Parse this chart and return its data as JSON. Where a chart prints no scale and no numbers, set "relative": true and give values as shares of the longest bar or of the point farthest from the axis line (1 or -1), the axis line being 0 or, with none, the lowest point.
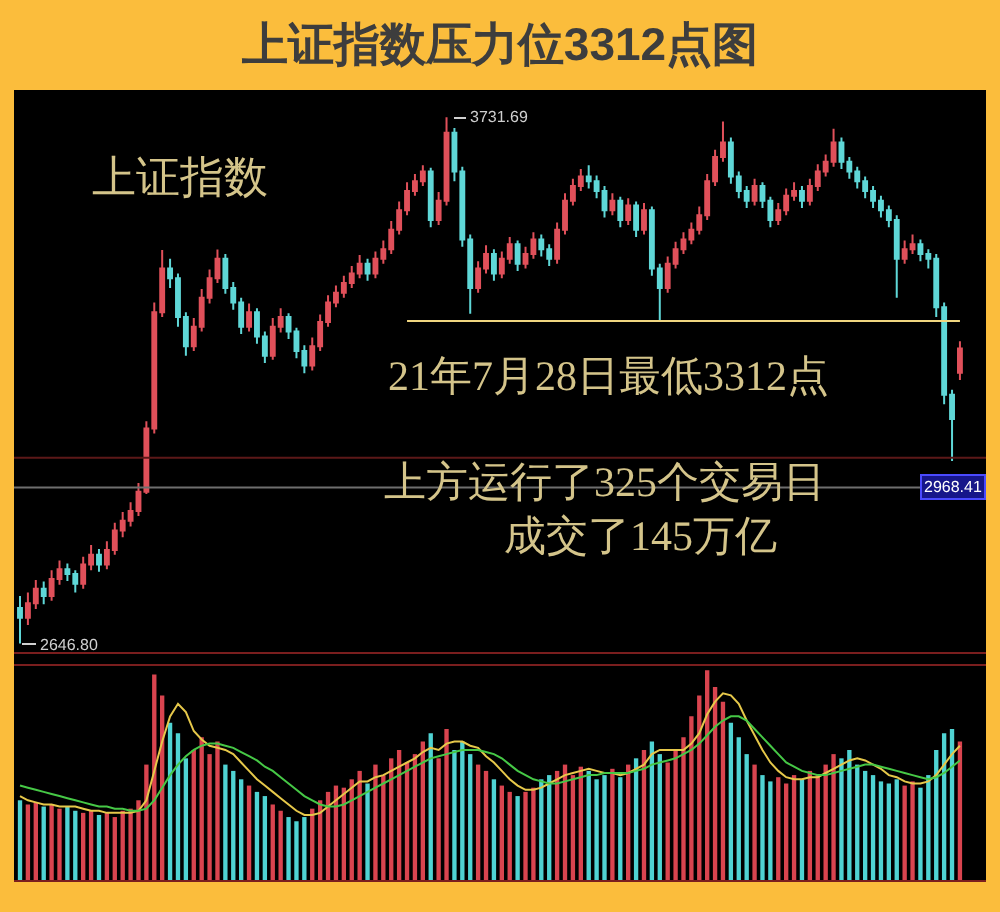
{
  "chart_data": [
    {
      "type": "candlestick",
      "title": "上证指数压力位3312点图",
      "tick_labels": false,
      "categories": [
        null,
        null,
        null,
        null,
        null,
        null,
        null,
        null,
        null,
        null,
        null,
        null,
        null,
        null,
        null,
        null,
        null,
        null,
        null,
        null,
        null,
        null,
        null,
        null,
        null,
        null,
        null,
        null,
        null,
        null,
        null,
        null,
        null,
        null,
        null,
        null,
        null,
        null,
        null,
        null,
        null,
        null,
        null,
        null,
        null,
        null,
        null,
        null,
        null,
        null,
        null,
        null,
        null,
        null,
        null,
        null,
        null,
        null,
        null,
        null,
        null,
        null,
        null,
        null,
        null,
        null,
        null,
        null,
        null,
        null,
        null,
        null,
        null,
        null,
        null,
        null,
        null,
        null,
        null,
        null,
        null,
        null,
        null,
        null,
        null,
        null,
        null,
        null,
        null,
        null,
        null,
        null,
        null,
        null,
        null,
        null,
        null,
        null,
        null,
        null,
        null,
        null,
        null,
        null,
        null,
        null,
        null,
        null,
        null,
        null,
        null,
        null,
        null,
        null,
        null,
        null,
        null,
        null,
        null,
        null
      ],
      "ohlc": [
        [
          2720,
          2745,
          2646.8,
          2700
        ],
        [
          2700,
          2752,
          2685,
          2730
        ],
        [
          2730,
          2778,
          2718,
          2760
        ],
        [
          2760,
          2775,
          2728,
          2745
        ],
        [
          2745,
          2798,
          2735,
          2780
        ],
        [
          2780,
          2818,
          2768,
          2800
        ],
        [
          2800,
          2812,
          2776,
          2790
        ],
        [
          2790,
          2798,
          2752,
          2770
        ],
        [
          2770,
          2826,
          2760,
          2810
        ],
        [
          2810,
          2850,
          2798,
          2830
        ],
        [
          2830,
          2842,
          2795,
          2810
        ],
        [
          2810,
          2858,
          2800,
          2840
        ],
        [
          2840,
          2896,
          2830,
          2880
        ],
        [
          2880,
          2918,
          2866,
          2900
        ],
        [
          2900,
          2938,
          2888,
          2920
        ],
        [
          2920,
          2978,
          2910,
          2960
        ],
        [
          2960,
          3105,
          2955,
          3090
        ],
        [
          3090,
          3350,
          3080,
          3330
        ],
        [
          3330,
          3458,
          3320,
          3420
        ],
        [
          3420,
          3440,
          3380,
          3400
        ],
        [
          3400,
          3410,
          3300,
          3320
        ],
        [
          3320,
          3330,
          3240,
          3260
        ],
        [
          3260,
          3318,
          3250,
          3300
        ],
        [
          3300,
          3378,
          3290,
          3360
        ],
        [
          3360,
          3418,
          3348,
          3400
        ],
        [
          3400,
          3459,
          3390,
          3440
        ],
        [
          3440,
          3450,
          3368,
          3380
        ],
        [
          3380,
          3392,
          3335,
          3350
        ],
        [
          3350,
          3360,
          3285,
          3300
        ],
        [
          3300,
          3348,
          3290,
          3330
        ],
        [
          3330,
          3338,
          3265,
          3280
        ],
        [
          3280,
          3290,
          3225,
          3240
        ],
        [
          3240,
          3318,
          3232,
          3300
        ],
        [
          3300,
          3338,
          3288,
          3320
        ],
        [
          3320,
          3328,
          3275,
          3290
        ],
        [
          3290,
          3298,
          3235,
          3250
        ],
        [
          3250,
          3262,
          3204,
          3220
        ],
        [
          3220,
          3278,
          3210,
          3260
        ],
        [
          3260,
          3325,
          3250,
          3310
        ],
        [
          3310,
          3365,
          3300,
          3350
        ],
        [
          3350,
          3385,
          3340,
          3370
        ],
        [
          3370,
          3405,
          3360,
          3390
        ],
        [
          3390,
          3425,
          3380,
          3410
        ],
        [
          3410,
          3448,
          3400,
          3430
        ],
        [
          3430,
          3440,
          3395,
          3410
        ],
        [
          3410,
          3455,
          3400,
          3440
        ],
        [
          3440,
          3478,
          3430,
          3460
        ],
        [
          3460,
          3518,
          3450,
          3500
        ],
        [
          3500,
          3558,
          3490,
          3540
        ],
        [
          3540,
          3598,
          3530,
          3580
        ],
        [
          3580,
          3615,
          3570,
          3600
        ],
        [
          3600,
          3633,
          3590,
          3620
        ],
        [
          3620,
          3628,
          3505,
          3520
        ],
        [
          3520,
          3578,
          3510,
          3560
        ],
        [
          3560,
          3731.69,
          3550,
          3700
        ],
        [
          3700,
          3710,
          3600,
          3620
        ],
        [
          3620,
          3630,
          3465,
          3480
        ],
        [
          3480,
          3490,
          3327,
          3380
        ],
        [
          3380,
          3435,
          3370,
          3420
        ],
        [
          3420,
          3468,
          3410,
          3450
        ],
        [
          3450,
          3460,
          3395,
          3410
        ],
        [
          3410,
          3455,
          3400,
          3440
        ],
        [
          3440,
          3485,
          3430,
          3470
        ],
        [
          3470,
          3478,
          3415,
          3430
        ],
        [
          3430,
          3465,
          3420,
          3450
        ],
        [
          3450,
          3495,
          3440,
          3480
        ],
        [
          3480,
          3490,
          3445,
          3460
        ],
        [
          3460,
          3470,
          3425,
          3440
        ],
        [
          3440,
          3515,
          3430,
          3500
        ],
        [
          3500,
          3575,
          3490,
          3560
        ],
        [
          3560,
          3605,
          3550,
          3590
        ],
        [
          3590,
          3625,
          3580,
          3610
        ],
        [
          3610,
          3633,
          3585,
          3600
        ],
        [
          3600,
          3612,
          3565,
          3580
        ],
        [
          3580,
          3590,
          3525,
          3540
        ],
        [
          3540,
          3575,
          3530,
          3560
        ],
        [
          3560,
          3568,
          3505,
          3520
        ],
        [
          3520,
          3565,
          3510,
          3550
        ],
        [
          3550,
          3558,
          3485,
          3500
        ],
        [
          3500,
          3555,
          3490,
          3540
        ],
        [
          3540,
          3548,
          3405,
          3420
        ],
        [
          3420,
          3430,
          3312,
          3380
        ],
        [
          3380,
          3445,
          3370,
          3430
        ],
        [
          3430,
          3475,
          3420,
          3460
        ],
        [
          3460,
          3495,
          3450,
          3480
        ],
        [
          3480,
          3515,
          3470,
          3500
        ],
        [
          3500,
          3548,
          3490,
          3530
        ],
        [
          3530,
          3615,
          3520,
          3600
        ],
        [
          3600,
          3665,
          3590,
          3650
        ],
        [
          3650,
          3723,
          3640,
          3680
        ],
        [
          3680,
          3690,
          3595,
          3610
        ],
        [
          3610,
          3620,
          3565,
          3580
        ],
        [
          3580,
          3590,
          3545,
          3560
        ],
        [
          3560,
          3605,
          3550,
          3590
        ],
        [
          3590,
          3598,
          3545,
          3560
        ],
        [
          3560,
          3568,
          3505,
          3520
        ],
        [
          3520,
          3555,
          3510,
          3540
        ],
        [
          3540,
          3585,
          3530,
          3570
        ],
        [
          3570,
          3598,
          3560,
          3580
        ],
        [
          3580,
          3590,
          3545,
          3560
        ],
        [
          3560,
          3605,
          3550,
          3590
        ],
        [
          3590,
          3635,
          3580,
          3620
        ],
        [
          3620,
          3655,
          3610,
          3640
        ],
        [
          3640,
          3708,
          3630,
          3680
        ],
        [
          3680,
          3690,
          3625,
          3640
        ],
        [
          3640,
          3650,
          3605,
          3620
        ],
        [
          3620,
          3630,
          3585,
          3600
        ],
        [
          3600,
          3610,
          3565,
          3580
        ],
        [
          3580,
          3590,
          3545,
          3560
        ],
        [
          3560,
          3570,
          3525,
          3540
        ],
        [
          3540,
          3550,
          3505,
          3520
        ],
        [
          3520,
          3530,
          3360,
          3440
        ],
        [
          3440,
          3478,
          3430,
          3460
        ],
        [
          3460,
          3490,
          3450,
          3470
        ],
        [
          3470,
          3480,
          3435,
          3450
        ],
        [
          3450,
          3460,
          3420,
          3440
        ],
        [
          3440,
          3450,
          3320,
          3340
        ],
        [
          3340,
          3350,
          3140,
          3160
        ],
        [
          3160,
          3170,
          3023,
          3110
        ],
        [
          3205,
          3270,
          3190,
          3255
        ]
      ],
      "series": [
        {
          "type": "line",
          "color": "#f0d680",
          "values": [
            null,
            null,
            null,
            null,
            null,
            null,
            null,
            null,
            null,
            null,
            null,
            null,
            null,
            null,
            null,
            null,
            null,
            null,
            null,
            null,
            null,
            null,
            null,
            null,
            null,
            null,
            null,
            null,
            null,
            null,
            null,
            null,
            null,
            null,
            null,
            null,
            null,
            null,
            null,
            null,
            null,
            null,
            null,
            null,
            null,
            null,
            null,
            null,
            null,
            3312,
            3312,
            3312,
            3312,
            3312,
            3312,
            3312,
            3312,
            3312,
            3312,
            3312,
            3312,
            3312,
            3312,
            3312,
            3312,
            3312,
            3312,
            3312,
            3312,
            3312,
            3312,
            3312,
            3312,
            3312,
            3312,
            3312,
            3312,
            3312,
            3312,
            3312,
            3312,
            3312,
            3312,
            3312,
            3312,
            3312,
            3312,
            3312,
            3312,
            3312,
            3312,
            3312,
            3312,
            3312,
            3312,
            3312,
            3312,
            3312,
            3312,
            3312,
            3312,
            3312,
            3312,
            3312,
            3312,
            3312,
            3312,
            3312,
            3312,
            3312,
            3312,
            3312,
            3312,
            3312,
            3312,
            3312,
            3312,
            3312,
            3312,
            3312
          ]
        }
      ],
      "annotations": [
        "上证指数",
        "21年7月28日最低3312点",
        "上方运行了325个交易日",
        "成交了145万亿",
        "3731.69",
        "2646.80"
      ],
      "ref_lines": [
        {
          "axis": "y",
          "value": 2968.41,
          "label": "2968.41",
          "color": "#6e6e6e"
        },
        {
          "axis": "y",
          "value": 3030,
          "color": "#5c1818"
        }
      ]
    },
    {
      "type": "bar",
      "relative": true,
      "tick_labels": false,
      "categories": [
        null,
        null,
        null,
        null,
        null,
        null,
        null,
        null,
        null,
        null,
        null,
        null,
        null,
        null,
        null,
        null,
        null,
        null,
        null,
        null,
        null,
        null,
        null,
        null,
        null,
        null,
        null,
        null,
        null,
        null,
        null,
        null,
        null,
        null,
        null,
        null,
        null,
        null,
        null,
        null,
        null,
        null,
        null,
        null,
        null,
        null,
        null,
        null,
        null,
        null,
        null,
        null,
        null,
        null,
        null,
        null,
        null,
        null,
        null,
        null,
        null,
        null,
        null,
        null,
        null,
        null,
        null,
        null,
        null,
        null,
        null,
        null,
        null,
        null,
        null,
        null,
        null,
        null,
        null,
        null,
        null,
        null,
        null,
        null,
        null,
        null,
        null,
        null,
        null,
        null,
        null,
        null,
        null,
        null,
        null,
        null,
        null,
        null,
        null,
        null,
        null,
        null,
        null,
        null,
        null,
        null,
        null,
        null,
        null,
        null,
        null,
        null,
        null,
        null,
        null,
        null,
        null,
        null,
        null,
        null
      ],
      "series": [
        {
          "type": "bar",
          "values": [
            0.38,
            0.36,
            0.37,
            0.35,
            0.36,
            0.34,
            0.35,
            0.33,
            0.32,
            0.33,
            0.31,
            0.32,
            0.3,
            0.33,
            0.34,
            0.38,
            0.55,
            0.98,
            0.88,
            0.75,
            0.7,
            0.58,
            0.62,
            0.68,
            0.6,
            0.66,
            0.55,
            0.52,
            0.48,
            0.45,
            0.42,
            0.4,
            0.36,
            0.33,
            0.3,
            0.28,
            0.3,
            0.34,
            0.38,
            0.42,
            0.45,
            0.44,
            0.48,
            0.52,
            0.46,
            0.55,
            0.5,
            0.58,
            0.62,
            0.56,
            0.6,
            0.66,
            0.7,
            0.58,
            0.72,
            0.62,
            0.66,
            0.6,
            0.55,
            0.52,
            0.48,
            0.45,
            0.42,
            0.4,
            0.42,
            0.44,
            0.48,
            0.5,
            0.52,
            0.55,
            0.5,
            0.54,
            0.52,
            0.48,
            0.5,
            0.53,
            0.49,
            0.55,
            0.58,
            0.62,
            0.66,
            0.6,
            0.56,
            0.62,
            0.68,
            0.78,
            0.88,
            1.0,
            0.92,
            0.85,
            0.75,
            0.68,
            0.6,
            0.55,
            0.5,
            0.47,
            0.49,
            0.46,
            0.5,
            0.48,
            0.52,
            0.5,
            0.55,
            0.6,
            0.58,
            0.62,
            0.55,
            0.52,
            0.5,
            0.47,
            0.46,
            0.48,
            0.45,
            0.47,
            0.44,
            0.5,
            0.62,
            0.7,
            0.72,
            0.66
          ],
          "colors": [
            "#4fd3d3",
            "#d9444f",
            "#d9444f",
            "#4fd3d3",
            "#d9444f",
            "#d9444f",
            "#4fd3d3",
            "#4fd3d3",
            "#d9444f",
            "#d9444f",
            "#4fd3d3",
            "#d9444f",
            "#d9444f",
            "#d9444f",
            "#d9444f",
            "#d9444f",
            "#d9444f",
            "#d9444f",
            "#d9444f",
            "#4fd3d3",
            "#4fd3d3",
            "#4fd3d3",
            "#d9444f",
            "#d9444f",
            "#d9444f",
            "#d9444f",
            "#4fd3d3",
            "#4fd3d3",
            "#4fd3d3",
            "#d9444f",
            "#4fd3d3",
            "#4fd3d3",
            "#d9444f",
            "#d9444f",
            "#4fd3d3",
            "#4fd3d3",
            "#4fd3d3",
            "#d9444f",
            "#d9444f",
            "#d9444f",
            "#d9444f",
            "#d9444f",
            "#d9444f",
            "#d9444f",
            "#4fd3d3",
            "#d9444f",
            "#d9444f",
            "#d9444f",
            "#d9444f",
            "#d9444f",
            "#d9444f",
            "#d9444f",
            "#4fd3d3",
            "#d9444f",
            "#d9444f",
            "#4fd3d3",
            "#4fd3d3",
            "#4fd3d3",
            "#d9444f",
            "#d9444f",
            "#4fd3d3",
            "#d9444f",
            "#d9444f",
            "#4fd3d3",
            "#d9444f",
            "#d9444f",
            "#4fd3d3",
            "#4fd3d3",
            "#d9444f",
            "#d9444f",
            "#d9444f",
            "#d9444f",
            "#4fd3d3",
            "#4fd3d3",
            "#4fd3d3",
            "#d9444f",
            "#4fd3d3",
            "#d9444f",
            "#4fd3d3",
            "#d9444f",
            "#4fd3d3",
            "#4fd3d3",
            "#d9444f",
            "#d9444f",
            "#d9444f",
            "#d9444f",
            "#d9444f",
            "#d9444f",
            "#d9444f",
            "#d9444f",
            "#4fd3d3",
            "#4fd3d3",
            "#4fd3d3",
            "#d9444f",
            "#4fd3d3",
            "#4fd3d3",
            "#d9444f",
            "#d9444f",
            "#d9444f",
            "#4fd3d3",
            "#d9444f",
            "#d9444f",
            "#d9444f",
            "#d9444f",
            "#4fd3d3",
            "#4fd3d3",
            "#4fd3d3",
            "#4fd3d3",
            "#4fd3d3",
            "#4fd3d3",
            "#4fd3d3",
            "#4fd3d3",
            "#d9444f",
            "#d9444f",
            "#4fd3d3",
            "#4fd3d3",
            "#4fd3d3",
            "#4fd3d3",
            "#4fd3d3",
            "#d9444f"
          ]
        },
        {
          "type": "line",
          "color": "#e6c84a",
          "values": [
            0.4,
            0.38,
            0.37,
            0.36,
            0.36,
            0.35,
            0.35,
            0.35,
            0.34,
            0.33,
            0.33,
            0.32,
            0.32,
            0.32,
            0.32,
            0.33,
            0.38,
            0.52,
            0.66,
            0.78,
            0.84,
            0.8,
            0.71,
            0.67,
            0.64,
            0.63,
            0.62,
            0.6,
            0.56,
            0.52,
            0.48,
            0.45,
            0.42,
            0.39,
            0.36,
            0.33,
            0.31,
            0.31,
            0.32,
            0.35,
            0.38,
            0.41,
            0.44,
            0.47,
            0.47,
            0.49,
            0.5,
            0.52,
            0.54,
            0.56,
            0.58,
            0.61,
            0.63,
            0.62,
            0.65,
            0.66,
            0.66,
            0.64,
            0.63,
            0.59,
            0.56,
            0.52,
            0.48,
            0.45,
            0.43,
            0.43,
            0.44,
            0.46,
            0.48,
            0.5,
            0.51,
            0.52,
            0.53,
            0.52,
            0.51,
            0.51,
            0.5,
            0.51,
            0.53,
            0.55,
            0.6,
            0.62,
            0.62,
            0.62,
            0.62,
            0.65,
            0.7,
            0.79,
            0.85,
            0.89,
            0.88,
            0.84,
            0.76,
            0.69,
            0.62,
            0.56,
            0.52,
            0.49,
            0.48,
            0.48,
            0.49,
            0.49,
            0.51,
            0.53,
            0.55,
            0.57,
            0.58,
            0.57,
            0.55,
            0.53,
            0.5,
            0.49,
            0.47,
            0.46,
            0.46,
            0.47,
            0.5,
            0.55,
            0.6,
            0.64
          ]
        },
        {
          "type": "line",
          "color": "#46c846",
          "values": [
            0.45,
            0.44,
            0.43,
            0.42,
            0.41,
            0.4,
            0.39,
            0.38,
            0.37,
            0.36,
            0.35,
            0.35,
            0.34,
            0.34,
            0.33,
            0.33,
            0.34,
            0.38,
            0.44,
            0.5,
            0.55,
            0.59,
            0.62,
            0.64,
            0.65,
            0.65,
            0.64,
            0.63,
            0.61,
            0.59,
            0.57,
            0.54,
            0.52,
            0.49,
            0.46,
            0.43,
            0.4,
            0.38,
            0.36,
            0.35,
            0.35,
            0.36,
            0.38,
            0.4,
            0.42,
            0.44,
            0.46,
            0.48,
            0.5,
            0.52,
            0.54,
            0.56,
            0.58,
            0.59,
            0.6,
            0.61,
            0.62,
            0.62,
            0.62,
            0.61,
            0.6,
            0.58,
            0.55,
            0.52,
            0.5,
            0.48,
            0.47,
            0.46,
            0.46,
            0.47,
            0.48,
            0.49,
            0.5,
            0.5,
            0.51,
            0.51,
            0.51,
            0.51,
            0.52,
            0.53,
            0.55,
            0.56,
            0.57,
            0.58,
            0.6,
            0.62,
            0.65,
            0.69,
            0.73,
            0.76,
            0.78,
            0.78,
            0.76,
            0.72,
            0.68,
            0.64,
            0.6,
            0.56,
            0.54,
            0.52,
            0.51,
            0.5,
            0.5,
            0.51,
            0.52,
            0.53,
            0.54,
            0.55,
            0.55,
            0.54,
            0.53,
            0.52,
            0.51,
            0.5,
            0.49,
            0.48,
            0.49,
            0.51,
            0.54,
            0.57
          ]
        }
      ]
    }
  ]
}
